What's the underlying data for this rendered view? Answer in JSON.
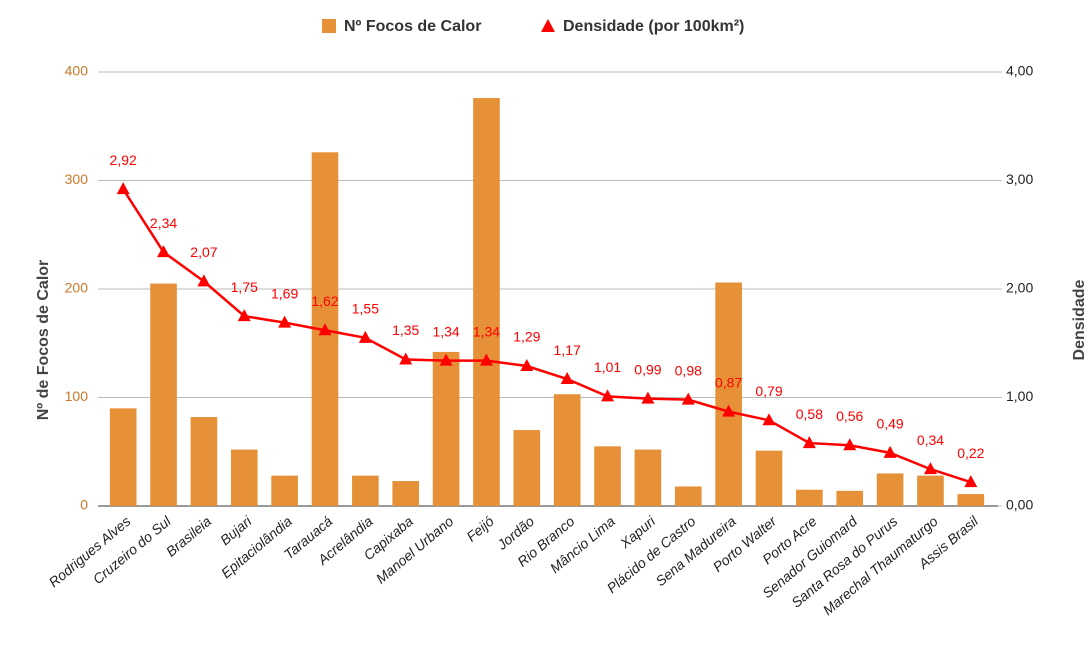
{
  "chart_data": {
    "type": "bar",
    "legend": "top",
    "grid": true,
    "ylabel": "Nº de Focos de Calor",
    "y2label": "Densidade",
    "categories": [
      "Rodrigues Alves",
      "Cruzeiro do Sul",
      "Brasileia",
      "Bujari",
      "Epitaciolândia",
      "Tarauacá",
      "Acrelândia",
      "Capixaba",
      "Manoel Urbano",
      "Feijó",
      "Jordão",
      "Rio Branco",
      "Mâncio Lima",
      "Xapuri",
      "Plácido de Castro",
      "Sena Madureira",
      "Porto Walter",
      "Porto Acre",
      "Senador Guiomard",
      "Santa Rosa do Purus",
      "Marechal Thaumaturgo",
      "Assis Brasil"
    ],
    "series": [
      {
        "name": "Nº Focos de Calor",
        "type": "bar",
        "color": "#e69138",
        "values": [
          90,
          205,
          82,
          52,
          28,
          326,
          28,
          23,
          142,
          376,
          70,
          103,
          55,
          52,
          18,
          206,
          51,
          15,
          14,
          30,
          28,
          11
        ]
      },
      {
        "name": "Densidade (por 100km²)",
        "type": "line",
        "axis": "y2",
        "color": "#ff0000",
        "values": [
          2.92,
          2.34,
          2.07,
          1.75,
          1.69,
          1.62,
          1.55,
          1.35,
          1.34,
          1.34,
          1.29,
          1.17,
          1.01,
          0.99,
          0.98,
          0.87,
          0.79,
          0.58,
          0.56,
          0.49,
          0.34,
          0.22
        ],
        "value_labels": [
          "2,92",
          "2,34",
          "2,07",
          "1,75",
          "1,69",
          "1,62",
          "1,55",
          "1,35",
          "1,34",
          "1,34",
          "1,29",
          "1,17",
          "1,01",
          "0,99",
          "0,98",
          "0,87",
          "0,79",
          "0,58",
          "0,56",
          "0,49",
          "0,34",
          "0,22"
        ]
      }
    ],
    "ylim": [
      0,
      400
    ],
    "yticks": [
      0,
      100,
      200,
      300,
      400
    ],
    "y2lim": [
      0,
      4
    ],
    "y2ticks": [
      {
        "value": 0,
        "label": "0,00"
      },
      {
        "value": 1,
        "label": "1,00"
      },
      {
        "value": 2,
        "label": "2,00"
      },
      {
        "value": 3,
        "label": "3,00"
      },
      {
        "value": 4,
        "label": "4,00"
      }
    ]
  }
}
